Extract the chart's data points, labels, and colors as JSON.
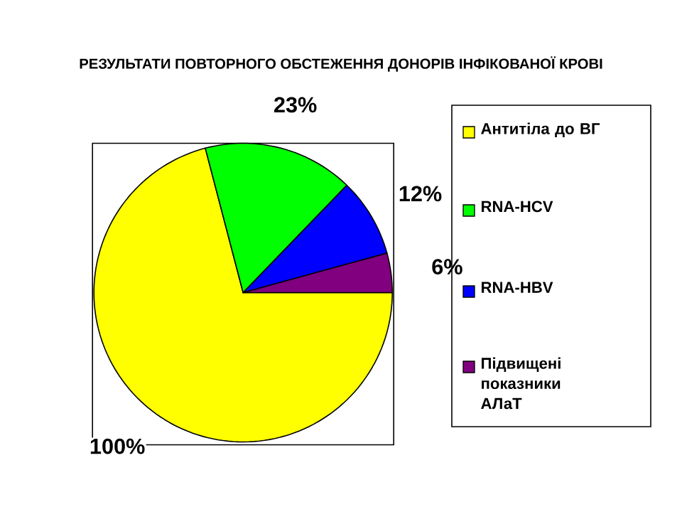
{
  "chart_data": {
    "type": "pie",
    "title": "РЕЗУЛЬТАТИ ПОВТОРНОГО ОБСТЕЖЕННЯ ДОНОРІВ ІНФІКОВАНОЇ КРОВІ",
    "categories": [
      "Антитіла до ВГ",
      "RNA-HCV",
      "RNA-HBV",
      "Підвищені показники АЛаТ"
    ],
    "values": [
      100,
      23,
      12,
      6
    ],
    "value_labels": [
      "100%",
      "23%",
      "12%",
      "6%"
    ],
    "colors": [
      "#ffff00",
      "#00ff00",
      "#0000ff",
      "#800080"
    ],
    "legend": "right"
  }
}
